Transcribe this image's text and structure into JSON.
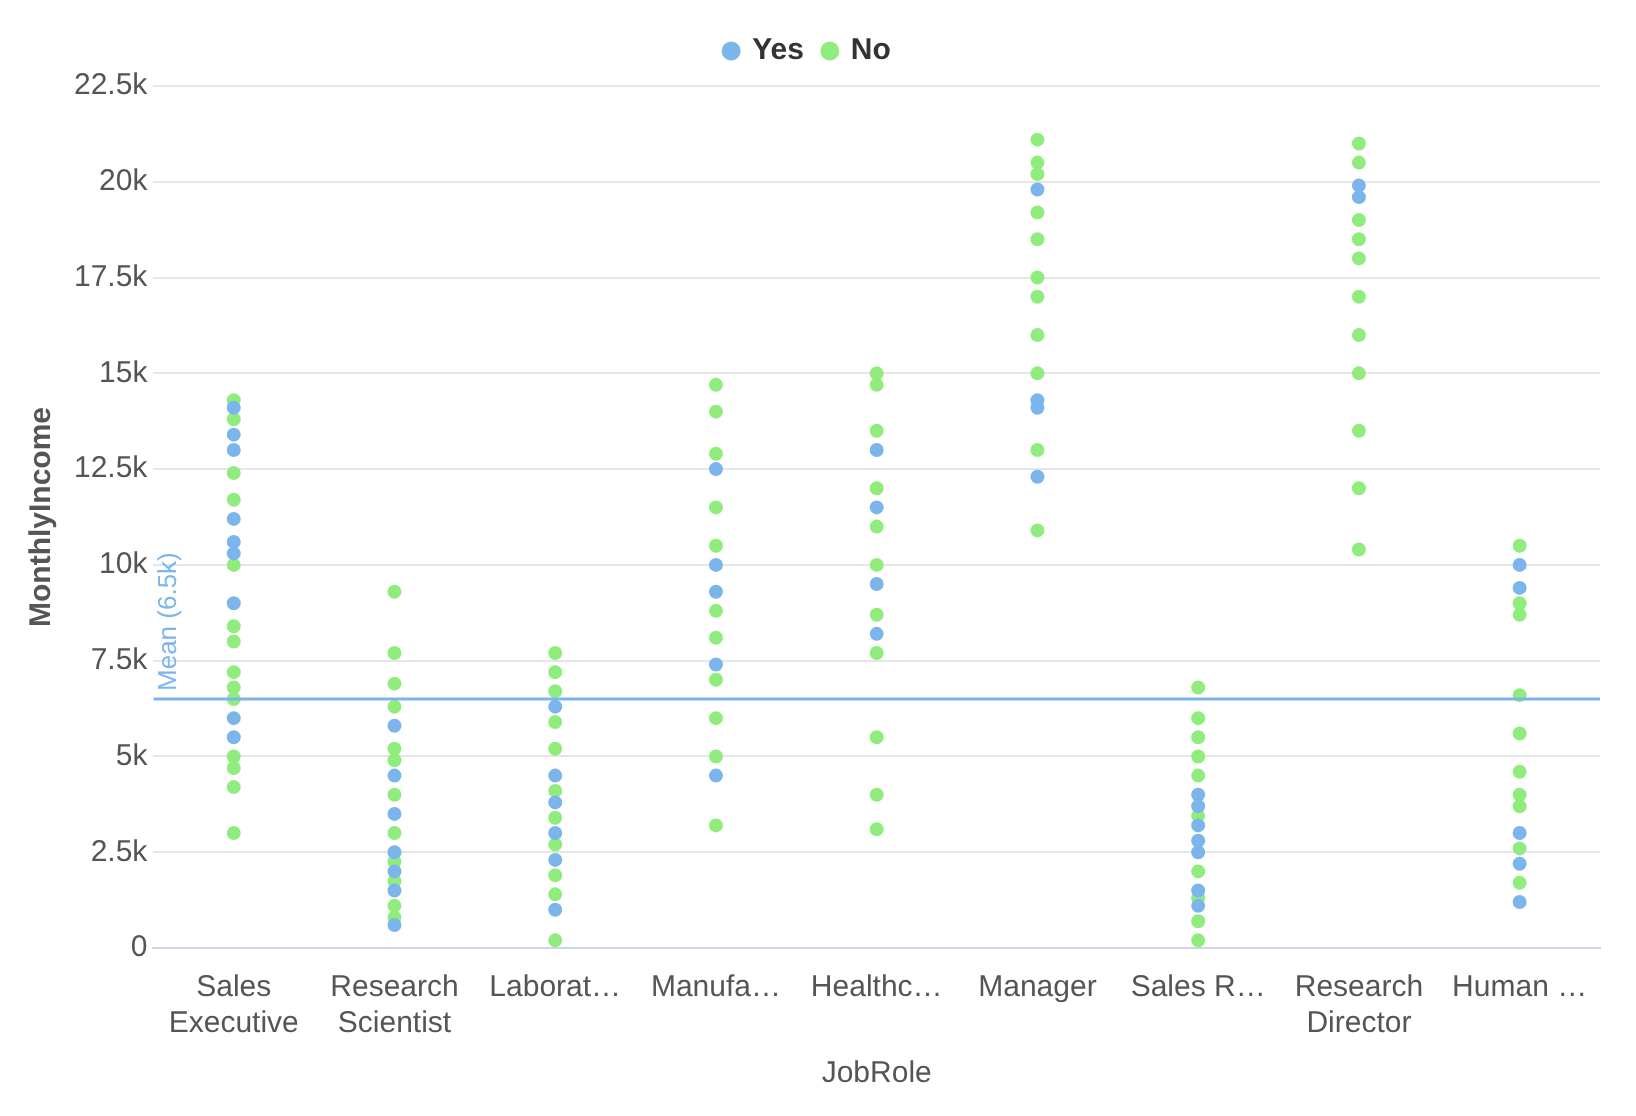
{
  "chart_data": {
    "type": "scatter",
    "xlabel": "JobRole",
    "ylabel": "MonthlyIncome",
    "categories": [
      "Sales Executive",
      "Research Scientist",
      "Laborat…",
      "Manufa…",
      "Healthc…",
      "Manager",
      "Sales R…",
      "Research Director",
      "Human …"
    ],
    "series": [
      {
        "name": "Yes",
        "color": "#7cb5ec",
        "x": [
          "Sales Executive",
          "Sales Executive",
          "Sales Executive",
          "Sales Executive",
          "Sales Executive",
          "Sales Executive",
          "Sales Executive",
          "Sales Executive",
          "Sales Executive",
          "Research Scientist",
          "Research Scientist",
          "Research Scientist",
          "Research Scientist",
          "Research Scientist",
          "Research Scientist",
          "Research Scientist",
          "Laborat…",
          "Laborat…",
          "Laborat…",
          "Laborat…",
          "Laborat…",
          "Laborat…",
          "Manufa…",
          "Manufa…",
          "Manufa…",
          "Manufa…",
          "Manufa…",
          "Healthc…",
          "Healthc…",
          "Healthc…",
          "Healthc…",
          "Manager",
          "Manager",
          "Manager",
          "Manager",
          "Sales R…",
          "Sales R…",
          "Sales R…",
          "Sales R…",
          "Sales R…",
          "Sales R…",
          "Sales R…",
          "Research Director",
          "Research Director",
          "Human …",
          "Human …",
          "Human …",
          "Human …",
          "Human …"
        ],
        "values": [
          14100,
          13400,
          13000,
          11200,
          10600,
          10300,
          9000,
          6000,
          5500,
          5800,
          4500,
          3500,
          2500,
          2000,
          1500,
          600,
          6300,
          4500,
          3800,
          3000,
          2300,
          1000,
          12500,
          10000,
          9300,
          7400,
          4500,
          13000,
          11500,
          9500,
          8200,
          19800,
          14300,
          14100,
          12300,
          4000,
          3700,
          3200,
          2800,
          2500,
          1500,
          1100,
          19900,
          19600,
          10000,
          9400,
          3000,
          2200,
          1200
        ]
      },
      {
        "name": "No",
        "color": "#90ed7d",
        "x": [
          "Sales Executive",
          "Sales Executive",
          "Sales Executive",
          "Sales Executive",
          "Sales Executive",
          "Sales Executive",
          "Sales Executive",
          "Sales Executive",
          "Sales Executive",
          "Sales Executive",
          "Sales Executive",
          "Sales Executive",
          "Sales Executive",
          "Sales Executive",
          "Research Scientist",
          "Research Scientist",
          "Research Scientist",
          "Research Scientist",
          "Research Scientist",
          "Research Scientist",
          "Research Scientist",
          "Research Scientist",
          "Research Scientist",
          "Research Scientist",
          "Research Scientist",
          "Research Scientist",
          "Laborat…",
          "Laborat…",
          "Laborat…",
          "Laborat…",
          "Laborat…",
          "Laborat…",
          "Laborat…",
          "Laborat…",
          "Laborat…",
          "Laborat…",
          "Laborat…",
          "Manufa…",
          "Manufa…",
          "Manufa…",
          "Manufa…",
          "Manufa…",
          "Manufa…",
          "Manufa…",
          "Manufa…",
          "Manufa…",
          "Manufa…",
          "Manufa…",
          "Healthc…",
          "Healthc…",
          "Healthc…",
          "Healthc…",
          "Healthc…",
          "Healthc…",
          "Healthc…",
          "Healthc…",
          "Healthc…",
          "Healthc…",
          "Healthc…",
          "Manager",
          "Manager",
          "Manager",
          "Manager",
          "Manager",
          "Manager",
          "Manager",
          "Manager",
          "Manager",
          "Manager",
          "Manager",
          "Sales R…",
          "Sales R…",
          "Sales R…",
          "Sales R…",
          "Sales R…",
          "Sales R…",
          "Sales R…",
          "Sales R…",
          "Sales R…",
          "Sales R…",
          "Research Director",
          "Research Director",
          "Research Director",
          "Research Director",
          "Research Director",
          "Research Director",
          "Research Director",
          "Research Director",
          "Research Director",
          "Research Director",
          "Research Director",
          "Human …",
          "Human …",
          "Human …",
          "Human …",
          "Human …",
          "Human …",
          "Human …",
          "Human …",
          "Human …",
          "Human …"
        ],
        "values": [
          14300,
          13800,
          12400,
          11700,
          10000,
          8400,
          8000,
          7200,
          6500,
          6800,
          5000,
          4700,
          4200,
          3000,
          9300,
          7700,
          6900,
          6300,
          5200,
          4900,
          4000,
          3000,
          2250,
          1750,
          1100,
          800,
          7700,
          7200,
          6700,
          5900,
          5200,
          4100,
          3400,
          2700,
          1900,
          1400,
          200,
          14700,
          14000,
          12900,
          11500,
          10500,
          8800,
          8100,
          7000,
          6000,
          5000,
          3200,
          15000,
          14700,
          13500,
          12000,
          11000,
          10000,
          8700,
          7700,
          5500,
          4000,
          3100,
          21100,
          20500,
          20200,
          19200,
          18500,
          17500,
          17000,
          16000,
          15000,
          13000,
          10900,
          6800,
          6000,
          5500,
          5000,
          4500,
          3450,
          2000,
          1300,
          700,
          200,
          21000,
          20500,
          19000,
          18500,
          18000,
          17000,
          16000,
          15000,
          13500,
          12000,
          10400,
          10500,
          9000,
          8700,
          6600,
          5600,
          4600,
          4000,
          3700,
          2600,
          1700
        ]
      }
    ],
    "ylim": [
      0,
      22500
    ],
    "yticks": [
      0,
      {
        "value": 2500,
        "label": "2.5k"
      },
      {
        "value": 5000,
        "label": "5k"
      },
      {
        "value": 7500,
        "label": "7.5k"
      },
      {
        "value": 10000,
        "label": "10k"
      },
      {
        "value": 12500,
        "label": "12.5k"
      },
      {
        "value": 15000,
        "label": "15k"
      },
      {
        "value": 17500,
        "label": "17.5k"
      },
      {
        "value": 20000,
        "label": "20k"
      },
      {
        "value": 22500,
        "label": "22.5k"
      }
    ],
    "ref_lines": [
      {
        "axis": "y",
        "value": 6500,
        "label": "Mean (6.5k)",
        "color": "#7cb5ec"
      }
    ],
    "grid": "y",
    "legend": "top",
    "marker": "circle"
  }
}
